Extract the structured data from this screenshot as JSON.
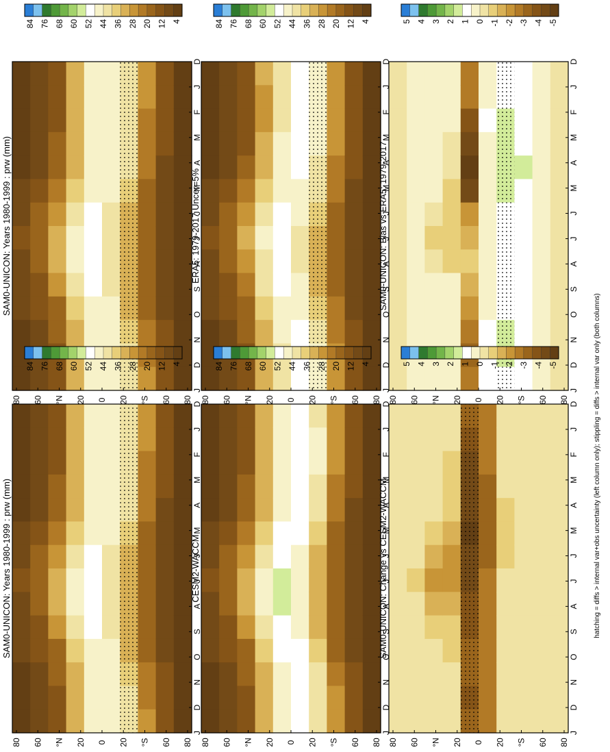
{
  "footer": "hatching = diffs > internal var+obs uncertainty (left column only); stippling = diffs > internal var only (both columns)",
  "month_labels": [
    "D",
    "J",
    "F",
    "M",
    "A",
    "M",
    "J",
    "J",
    "A",
    "S",
    "O",
    "N",
    "D",
    "J"
  ],
  "lat_labels": [
    "80",
    "60",
    "°N",
    "20",
    "0",
    "20",
    "°S",
    "60",
    "80"
  ],
  "abs_levels": [
    "84",
    "76",
    "68",
    "60",
    "52",
    "44",
    "36",
    "28",
    "20",
    "12",
    "4"
  ],
  "diff_levels": [
    "5",
    "4",
    "3",
    "2",
    "1",
    "0",
    "-1",
    "-2",
    "-3",
    "-4",
    "-5"
  ],
  "colors": {
    "abs_ramp": [
      "#2a7ed6",
      "#7cc1ee",
      "#2f7a2f",
      "#4e9a37",
      "#73b54a",
      "#a3d36b",
      "#d2ec9a",
      "#ffffff",
      "#f7f2c9",
      "#f0e3a4",
      "#e8cf79",
      "#d9b156",
      "#c89537",
      "#b27a26",
      "#9a651c",
      "#855417",
      "#734a17",
      "#633f14"
    ],
    "diff_ramp": [
      "#2a7ed6",
      "#7cc1ee",
      "#2f7a2f",
      "#4e9a37",
      "#73b54a",
      "#a3d36b",
      "#d2ec9a",
      "#ffffff",
      "#f7f2c9",
      "#f0e3a4",
      "#e8cf79",
      "#d9b156",
      "#c89537",
      "#b27a26",
      "#9a651c",
      "#855417",
      "#734a17",
      "#633f14"
    ]
  },
  "chart_data": [
    {
      "type": "heatmap",
      "kind": "abs",
      "title": "SAM0-UNICON: Years 1980-1999 : prw (mm)",
      "x": [
        "D",
        "J",
        "F",
        "M",
        "A",
        "M",
        "J",
        "J",
        "A",
        "S",
        "O",
        "N",
        "D",
        "J"
      ],
      "y": [
        90,
        70,
        50,
        30,
        10,
        -10,
        -30,
        -50,
        -70,
        -90
      ],
      "ylim": [
        -90,
        90
      ],
      "values": [
        [
          2,
          2,
          2,
          3,
          4,
          6,
          8,
          10,
          9,
          7,
          5,
          3,
          2,
          2
        ],
        [
          6,
          6,
          6,
          7,
          9,
          12,
          15,
          17,
          16,
          13,
          10,
          7,
          6,
          6
        ],
        [
          14,
          14,
          14,
          15,
          18,
          23,
          28,
          31,
          30,
          25,
          19,
          16,
          14,
          14
        ],
        [
          32,
          31,
          31,
          32,
          34,
          37,
          43,
          47,
          46,
          42,
          37,
          34,
          32,
          32
        ],
        [
          45,
          45,
          45,
          46,
          46,
          48,
          51,
          52,
          52,
          51,
          48,
          46,
          45,
          45
        ],
        [
          48,
          48,
          48,
          48,
          47,
          46,
          44,
          42,
          42,
          43,
          45,
          47,
          48,
          48
        ],
        [
          42,
          43,
          43,
          42,
          40,
          36,
          32,
          30,
          30,
          31,
          34,
          38,
          42,
          42
        ],
        [
          25,
          25,
          24,
          22,
          20,
          18,
          16,
          15,
          15,
          16,
          18,
          21,
          24,
          25
        ],
        [
          12,
          12,
          11,
          10,
          9,
          8,
          7,
          6,
          6,
          7,
          8,
          10,
          11,
          12
        ],
        [
          4,
          4,
          3,
          3,
          3,
          2,
          2,
          2,
          2,
          2,
          2,
          3,
          3,
          4
        ]
      ]
    },
    {
      "type": "heatmap",
      "kind": "abs",
      "title": "SAM0-UNICON: Years 1980-1999 : prw (mm)",
      "x": [
        "D",
        "J",
        "F",
        "M",
        "A",
        "M",
        "J",
        "J",
        "A",
        "S",
        "O",
        "N",
        "D",
        "J"
      ],
      "y": [
        90,
        70,
        50,
        30,
        10,
        -10,
        -30,
        -50,
        -70,
        -90
      ],
      "ylim": [
        -90,
        90
      ],
      "values": [
        [
          2,
          2,
          2,
          3,
          4,
          6,
          8,
          10,
          9,
          7,
          5,
          3,
          2,
          2
        ],
        [
          6,
          6,
          6,
          7,
          9,
          12,
          15,
          17,
          16,
          13,
          10,
          7,
          6,
          6
        ],
        [
          14,
          14,
          14,
          15,
          18,
          23,
          28,
          31,
          30,
          25,
          19,
          16,
          14,
          14
        ],
        [
          32,
          31,
          31,
          32,
          34,
          37,
          43,
          47,
          46,
          42,
          37,
          34,
          32,
          32
        ],
        [
          45,
          45,
          45,
          46,
          46,
          48,
          51,
          52,
          52,
          51,
          48,
          46,
          45,
          45
        ],
        [
          48,
          48,
          48,
          48,
          47,
          46,
          44,
          42,
          42,
          43,
          45,
          47,
          48,
          48
        ],
        [
          42,
          43,
          43,
          42,
          40,
          36,
          32,
          30,
          30,
          31,
          34,
          38,
          42,
          42
        ],
        [
          25,
          25,
          24,
          22,
          20,
          18,
          16,
          15,
          15,
          16,
          18,
          21,
          24,
          25
        ],
        [
          12,
          12,
          11,
          10,
          9,
          8,
          7,
          6,
          6,
          7,
          8,
          10,
          11,
          12
        ],
        [
          4,
          4,
          3,
          3,
          3,
          2,
          2,
          2,
          2,
          2,
          2,
          3,
          3,
          4
        ]
      ]
    },
    {
      "type": "heatmap",
      "kind": "abs",
      "title": "ERA5: 1979-2017 Uncer=5%",
      "x": [
        "D",
        "J",
        "F",
        "M",
        "A",
        "M",
        "J",
        "J",
        "A",
        "S",
        "O",
        "N",
        "D",
        "J"
      ],
      "y": [
        90,
        70,
        50,
        30,
        10,
        -10,
        -30,
        -50,
        -70,
        -90
      ],
      "ylim": [
        -90,
        90
      ],
      "values": [
        [
          2,
          2,
          2,
          3,
          4,
          6,
          8,
          10,
          9,
          7,
          5,
          3,
          2,
          2
        ],
        [
          6,
          6,
          6,
          7,
          9,
          12,
          15,
          17,
          16,
          13,
          10,
          7,
          6,
          6
        ],
        [
          13,
          13,
          13,
          14,
          17,
          22,
          27,
          30,
          29,
          24,
          18,
          15,
          13,
          13
        ],
        [
          30,
          29,
          29,
          30,
          32,
          35,
          41,
          45,
          44,
          40,
          35,
          32,
          30,
          30
        ],
        [
          44,
          44,
          44,
          45,
          45,
          47,
          50,
          51,
          51,
          50,
          47,
          45,
          44,
          44
        ],
        [
          50,
          50,
          50,
          51,
          50,
          48,
          46,
          44,
          44,
          45,
          47,
          49,
          50,
          50
        ],
        [
          46,
          47,
          47,
          46,
          44,
          40,
          35,
          33,
          33,
          34,
          37,
          42,
          46,
          46
        ],
        [
          29,
          29,
          28,
          26,
          23,
          20,
          18,
          17,
          17,
          18,
          21,
          24,
          28,
          29
        ],
        [
          13,
          13,
          12,
          11,
          10,
          9,
          8,
          7,
          7,
          8,
          9,
          11,
          12,
          13
        ],
        [
          4,
          4,
          3,
          3,
          3,
          2,
          2,
          2,
          2,
          2,
          2,
          3,
          3,
          4
        ]
      ]
    },
    {
      "type": "heatmap",
      "kind": "abs",
      "title": "CESM2-WACCM",
      "x": [
        "D",
        "J",
        "F",
        "M",
        "A",
        "M",
        "J",
        "J",
        "A",
        "S",
        "O",
        "N",
        "D",
        "J"
      ],
      "y": [
        90,
        70,
        50,
        30,
        10,
        -10,
        -30,
        -50,
        -70,
        -90
      ],
      "ylim": [
        -90,
        90
      ],
      "values": [
        [
          2,
          2,
          2,
          3,
          4,
          6,
          8,
          10,
          9,
          7,
          5,
          3,
          2,
          2
        ],
        [
          6,
          6,
          6,
          7,
          9,
          12,
          15,
          17,
          16,
          13,
          10,
          7,
          6,
          6
        ],
        [
          14,
          14,
          14,
          15,
          18,
          23,
          28,
          31,
          30,
          25,
          19,
          16,
          14,
          14
        ],
        [
          32,
          31,
          31,
          32,
          34,
          37,
          43,
          47,
          46,
          42,
          37,
          34,
          32,
          32
        ],
        [
          47,
          47,
          47,
          48,
          48,
          50,
          53,
          54,
          54,
          53,
          50,
          48,
          47,
          47
        ],
        [
          52,
          52,
          52,
          53,
          52,
          50,
          48,
          46,
          46,
          47,
          49,
          51,
          52,
          52
        ],
        [
          44,
          45,
          45,
          44,
          42,
          38,
          34,
          32,
          32,
          33,
          36,
          40,
          44,
          44
        ],
        [
          26,
          26,
          25,
          23,
          21,
          19,
          17,
          16,
          16,
          17,
          19,
          22,
          25,
          26
        ],
        [
          12,
          12,
          11,
          10,
          9,
          8,
          7,
          6,
          6,
          7,
          8,
          10,
          11,
          12
        ],
        [
          4,
          4,
          3,
          3,
          3,
          2,
          2,
          2,
          2,
          2,
          2,
          3,
          3,
          4
        ]
      ]
    },
    {
      "type": "heatmap",
      "kind": "diff",
      "title": "SAM0-UNICON: Bias vs ERA5: 1979-2017",
      "x": [
        "D",
        "J",
        "F",
        "M",
        "A",
        "M",
        "J",
        "J",
        "A",
        "S",
        "O",
        "N",
        "D",
        "J"
      ],
      "y": [
        90,
        70,
        50,
        30,
        10,
        -10,
        -30,
        -50,
        -70,
        -90
      ],
      "ylim": [
        -90,
        90
      ],
      "values": [
        [
          0,
          0,
          0,
          0,
          0,
          0,
          0,
          0,
          0,
          0,
          0,
          0,
          0,
          0
        ],
        [
          0.4,
          0.5,
          0.4,
          0.3,
          0.3,
          0.2,
          0.3,
          0.2,
          0.2,
          0.3,
          0.3,
          0.4,
          0.4,
          0.4
        ],
        [
          0.5,
          0.4,
          0.3,
          0.3,
          0.3,
          0.2,
          -0.6,
          -0.8,
          -0.5,
          0.2,
          0.3,
          0.4,
          0.5,
          0.5
        ],
        [
          0.3,
          0.2,
          0.1,
          0,
          -0.4,
          -0.8,
          -1.2,
          -1,
          -0.8,
          0.1,
          0.2,
          0.3,
          0.3,
          0.3
        ],
        [
          -2.5,
          -3,
          -4,
          -4.5,
          -5,
          -4.5,
          -2,
          -1.5,
          -1,
          -1.5,
          -2,
          -3,
          -3.5,
          -3
        ],
        [
          0.5,
          0.6,
          0.7,
          0.6,
          0.5,
          0.3,
          0.2,
          0.1,
          0.2,
          0.3,
          0.5,
          0.7,
          0.8,
          0.7
        ],
        [
          1,
          1.2,
          1.5,
          1.8,
          1.8,
          1.6,
          1.2,
          1.2,
          1,
          1,
          1.2,
          1.4,
          1.3,
          1.2
        ],
        [
          0.8,
          0.9,
          1,
          1.2,
          1.3,
          1.2,
          1,
          0.9,
          0.8,
          0.8,
          0.9,
          1,
          1.1,
          1
        ],
        [
          0.3,
          0.3,
          0.4,
          0.4,
          0.3,
          0.3,
          0.3,
          0.2,
          0.2,
          0.2,
          0.3,
          0.3,
          0.3,
          0.3
        ],
        [
          0,
          0,
          0,
          0,
          0,
          0,
          0,
          0,
          0,
          0,
          0,
          0,
          0,
          0
        ]
      ]
    },
    {
      "type": "heatmap",
      "kind": "diff",
      "title": "SAM0-UNICON: Change vs CESM2-WACCM",
      "x": [
        "D",
        "J",
        "F",
        "M",
        "A",
        "M",
        "J",
        "J",
        "A",
        "S",
        "O",
        "N",
        "D",
        "J"
      ],
      "y": [
        90,
        70,
        50,
        30,
        10,
        -10,
        -30,
        -50,
        -70,
        -90
      ],
      "ylim": [
        -90,
        90
      ],
      "values": [
        [
          0,
          0,
          0,
          0,
          0,
          0,
          0,
          0,
          0,
          0,
          0,
          0,
          0,
          0
        ],
        [
          0,
          0,
          -0.2,
          -0.3,
          -0.2,
          -0.3,
          -0.6,
          -0.8,
          -0.6,
          -0.3,
          -0.2,
          -0.1,
          0,
          0
        ],
        [
          -0.1,
          -0.2,
          -0.4,
          -0.5,
          -0.6,
          -0.8,
          -1.6,
          -2,
          -1.5,
          -0.8,
          -0.5,
          -0.3,
          -0.1,
          -0.1
        ],
        [
          -0.4,
          -0.6,
          -0.8,
          -1,
          -1.2,
          -1.5,
          -2,
          -2.2,
          -1.8,
          -1.2,
          -0.8,
          -0.6,
          -0.4,
          -0.4
        ],
        [
          -3.5,
          -4,
          -4.5,
          -4.5,
          -4.8,
          -5,
          -4.8,
          -4.5,
          -4,
          -3.8,
          -3.5,
          -3.5,
          -3.8,
          -3.5
        ],
        [
          -2.5,
          -2.8,
          -3,
          -3.2,
          -3.5,
          -3.5,
          -3.2,
          -3,
          -2.8,
          -2.5,
          -2.5,
          -2.6,
          -2.7,
          -2.5
        ],
        [
          -0.5,
          -0.6,
          -0.5,
          -0.6,
          -0.8,
          -0.8,
          -0.7,
          -0.6,
          -0.6,
          -0.5,
          -0.5,
          -0.6,
          -0.6,
          -0.5
        ],
        [
          -0.2,
          -0.3,
          -0.3,
          -0.3,
          -0.4,
          -0.4,
          -0.3,
          -0.3,
          -0.2,
          -0.2,
          -0.2,
          -0.3,
          -0.3,
          -0.2
        ],
        [
          0,
          -0.1,
          -0.1,
          -0.1,
          -0.1,
          -0.1,
          -0.1,
          -0.1,
          -0.1,
          -0.1,
          -0.1,
          -0.1,
          -0.1,
          0
        ],
        [
          0,
          0,
          0,
          0,
          0,
          0,
          0,
          0,
          0,
          0,
          0,
          0,
          0,
          0
        ]
      ]
    }
  ]
}
